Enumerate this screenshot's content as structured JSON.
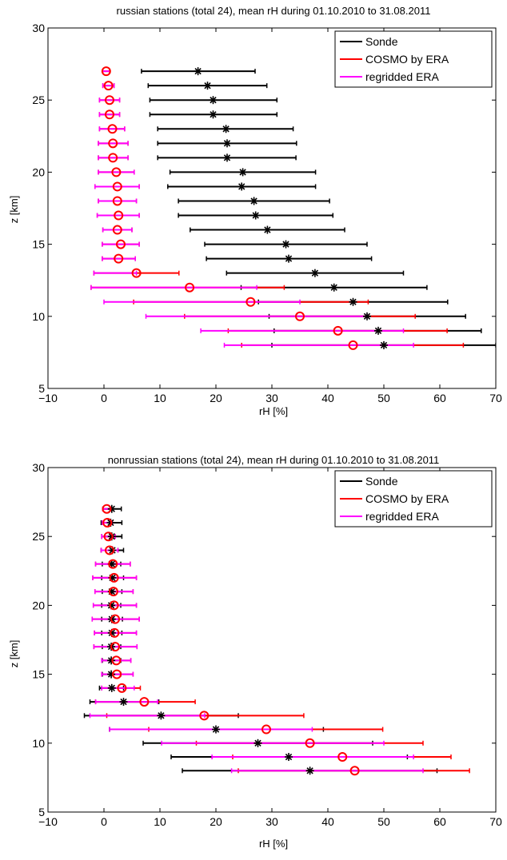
{
  "chart_data": [
    {
      "type": "errorbar",
      "title": "russian stations (total 24), mean rH during 01.10.2010 to 31.08.2011",
      "xlabel": "rH [%]",
      "ylabel": "z [km]",
      "xlim": [
        -10,
        70
      ],
      "ylim": [
        5,
        30
      ],
      "xticks": [
        -10,
        0,
        10,
        20,
        30,
        40,
        50,
        60,
        70
      ],
      "yticks": [
        5,
        10,
        15,
        20,
        25,
        30
      ],
      "legend_position": "top-right",
      "series": [
        {
          "name": "Sonde",
          "color": "#000000",
          "marker": "asterisk",
          "points": [
            {
              "z": 27.0,
              "x": 16.8,
              "lo": 6.7,
              "hi": 27.0
            },
            {
              "z": 26.0,
              "x": 18.5,
              "lo": 7.9,
              "hi": 29.1
            },
            {
              "z": 25.0,
              "x": 19.5,
              "lo": 8.2,
              "hi": 30.9
            },
            {
              "z": 24.0,
              "x": 19.5,
              "lo": 8.2,
              "hi": 30.9
            },
            {
              "z": 23.0,
              "x": 21.8,
              "lo": 9.6,
              "hi": 33.8
            },
            {
              "z": 22.0,
              "x": 22.0,
              "lo": 9.6,
              "hi": 34.4
            },
            {
              "z": 21.0,
              "x": 22.0,
              "lo": 9.6,
              "hi": 34.3
            },
            {
              "z": 20.0,
              "x": 24.8,
              "lo": 11.8,
              "hi": 37.8
            },
            {
              "z": 19.0,
              "x": 24.6,
              "lo": 11.4,
              "hi": 37.8
            },
            {
              "z": 18.0,
              "x": 26.8,
              "lo": 13.3,
              "hi": 40.3
            },
            {
              "z": 17.0,
              "x": 27.1,
              "lo": 13.3,
              "hi": 40.9
            },
            {
              "z": 16.0,
              "x": 29.2,
              "lo": 15.4,
              "hi": 43.0
            },
            {
              "z": 15.0,
              "x": 32.5,
              "lo": 18.0,
              "hi": 47.0
            },
            {
              "z": 14.0,
              "x": 33.0,
              "lo": 18.3,
              "hi": 47.8
            },
            {
              "z": 13.0,
              "x": 37.7,
              "lo": 21.9,
              "hi": 53.5
            },
            {
              "z": 12.0,
              "x": 41.1,
              "lo": 24.5,
              "hi": 57.7
            },
            {
              "z": 11.0,
              "x": 44.5,
              "lo": 27.6,
              "hi": 61.4
            },
            {
              "z": 10.0,
              "x": 47.0,
              "lo": 29.5,
              "hi": 64.6
            },
            {
              "z": 9.0,
              "x": 49.0,
              "lo": 30.4,
              "hi": 67.4
            },
            {
              "z": 8.0,
              "x": 50.0,
              "lo": 30.0,
              "hi": 70.0
            }
          ]
        },
        {
          "name": "COSMO by ERA",
          "color": "#ff0000",
          "marker": "circle",
          "points": [
            {
              "z": 27.0,
              "x": 0.4,
              "lo": -0.2,
              "hi": 1.0
            },
            {
              "z": 26.0,
              "x": 0.8,
              "lo": -0.2,
              "hi": 1.8
            },
            {
              "z": 25.0,
              "x": 1.0,
              "lo": -0.8,
              "hi": 2.8
            },
            {
              "z": 24.0,
              "x": 1.0,
              "lo": -0.8,
              "hi": 2.8
            },
            {
              "z": 23.0,
              "x": 1.5,
              "lo": -0.8,
              "hi": 3.7
            },
            {
              "z": 22.0,
              "x": 1.6,
              "lo": -1.0,
              "hi": 4.3
            },
            {
              "z": 21.0,
              "x": 1.6,
              "lo": -1.0,
              "hi": 4.3
            },
            {
              "z": 20.0,
              "x": 2.2,
              "lo": -1.0,
              "hi": 5.4
            },
            {
              "z": 19.0,
              "x": 2.4,
              "lo": -1.6,
              "hi": 6.3
            },
            {
              "z": 18.0,
              "x": 2.4,
              "lo": -1.0,
              "hi": 5.8
            },
            {
              "z": 17.0,
              "x": 2.6,
              "lo": -1.2,
              "hi": 6.3
            },
            {
              "z": 16.0,
              "x": 2.4,
              "lo": -0.2,
              "hi": 5.0
            },
            {
              "z": 15.0,
              "x": 3.0,
              "lo": -0.3,
              "hi": 6.3
            },
            {
              "z": 14.0,
              "x": 2.6,
              "lo": -0.3,
              "hi": 5.6
            },
            {
              "z": 13.0,
              "x": 5.8,
              "lo": -1.8,
              "hi": 13.4
            },
            {
              "z": 12.0,
              "x": 15.3,
              "lo": -2.3,
              "hi": 32.2
            },
            {
              "z": 11.0,
              "x": 26.2,
              "lo": 5.3,
              "hi": 47.2
            },
            {
              "z": 10.0,
              "x": 35.0,
              "lo": 14.4,
              "hi": 55.6
            },
            {
              "z": 9.0,
              "x": 41.8,
              "lo": 22.2,
              "hi": 61.3
            },
            {
              "z": 8.0,
              "x": 44.5,
              "lo": 24.6,
              "hi": 64.2
            }
          ]
        },
        {
          "name": "regridded ERA",
          "color": "#ff00ff",
          "marker": "none",
          "points": [
            {
              "z": 27.0,
              "x": 0.4,
              "lo": -0.2,
              "hi": 1.0
            },
            {
              "z": 26.0,
              "x": 0.8,
              "lo": -0.2,
              "hi": 1.8
            },
            {
              "z": 25.0,
              "x": 1.0,
              "lo": -0.8,
              "hi": 2.8
            },
            {
              "z": 24.0,
              "x": 1.0,
              "lo": -0.8,
              "hi": 2.8
            },
            {
              "z": 23.0,
              "x": 1.5,
              "lo": -0.8,
              "hi": 3.7
            },
            {
              "z": 22.0,
              "x": 1.6,
              "lo": -1.0,
              "hi": 4.3
            },
            {
              "z": 21.0,
              "x": 1.6,
              "lo": -1.0,
              "hi": 4.3
            },
            {
              "z": 20.0,
              "x": 2.2,
              "lo": -1.0,
              "hi": 5.4
            },
            {
              "z": 19.0,
              "x": 2.4,
              "lo": -1.6,
              "hi": 6.3
            },
            {
              "z": 18.0,
              "x": 2.4,
              "lo": -1.0,
              "hi": 5.8
            },
            {
              "z": 17.0,
              "x": 2.6,
              "lo": -1.2,
              "hi": 6.3
            },
            {
              "z": 16.0,
              "x": 2.4,
              "lo": -0.2,
              "hi": 5.0
            },
            {
              "z": 15.0,
              "x": 3.0,
              "lo": -0.3,
              "hi": 6.3
            },
            {
              "z": 14.0,
              "x": 2.6,
              "lo": -0.3,
              "hi": 5.6
            },
            {
              "z": 13.0,
              "x": 5.8,
              "lo": -1.8,
              "hi": 5.8
            },
            {
              "z": 12.0,
              "x": 15.3,
              "lo": -2.3,
              "hi": 27.3
            },
            {
              "z": 11.0,
              "x": 26.2,
              "lo": 0.0,
              "hi": 35.0
            },
            {
              "z": 10.0,
              "x": 35.0,
              "lo": 7.5,
              "hi": 47.0
            },
            {
              "z": 9.0,
              "x": 41.8,
              "lo": 17.3,
              "hi": 53.5
            },
            {
              "z": 8.0,
              "x": 44.5,
              "lo": 21.5,
              "hi": 55.3
            }
          ]
        }
      ]
    },
    {
      "type": "errorbar",
      "title": "nonrussian stations (total 24), mean rH during 01.10.2010 to 31.08.2011",
      "xlabel": "rH [%]",
      "ylabel": "z [km]",
      "xlim": [
        -10,
        70
      ],
      "ylim": [
        5,
        30
      ],
      "xticks": [
        -10,
        0,
        10,
        20,
        30,
        40,
        50,
        60,
        70
      ],
      "yticks": [
        5,
        10,
        15,
        20,
        25,
        30
      ],
      "legend_position": "top-right",
      "series": [
        {
          "name": "Sonde",
          "color": "#000000",
          "marker": "asterisk",
          "points": [
            {
              "z": 27.0,
              "x": 1.4,
              "lo": -0.2,
              "hi": 3.1
            },
            {
              "z": 26.0,
              "x": 1.2,
              "lo": -0.5,
              "hi": 3.2
            },
            {
              "z": 25.0,
              "x": 1.4,
              "lo": -0.4,
              "hi": 3.2
            },
            {
              "z": 24.0,
              "x": 1.5,
              "lo": -0.5,
              "hi": 3.5
            },
            {
              "z": 23.0,
              "x": 1.4,
              "lo": -0.3,
              "hi": 3.0
            },
            {
              "z": 22.0,
              "x": 1.5,
              "lo": -0.4,
              "hi": 3.5
            },
            {
              "z": 21.0,
              "x": 1.4,
              "lo": -0.3,
              "hi": 3.2
            },
            {
              "z": 20.0,
              "x": 1.3,
              "lo": -0.4,
              "hi": 3.0
            },
            {
              "z": 19.0,
              "x": 1.4,
              "lo": -0.4,
              "hi": 3.3
            },
            {
              "z": 18.0,
              "x": 1.4,
              "lo": -0.4,
              "hi": 3.2
            },
            {
              "z": 17.0,
              "x": 1.3,
              "lo": -0.3,
              "hi": 3.0
            },
            {
              "z": 16.0,
              "x": 1.3,
              "lo": -0.3,
              "hi": 3.0
            },
            {
              "z": 15.0,
              "x": 1.3,
              "lo": -0.3,
              "hi": 3.0
            },
            {
              "z": 14.0,
              "x": 1.4,
              "lo": -0.8,
              "hi": 3.5
            },
            {
              "z": 13.0,
              "x": 3.5,
              "lo": -2.5,
              "hi": 9.8
            },
            {
              "z": 12.0,
              "x": 10.2,
              "lo": -3.5,
              "hi": 24.0
            },
            {
              "z": 11.0,
              "x": 20.0,
              "lo": 1.0,
              "hi": 39.2
            },
            {
              "z": 10.0,
              "x": 27.5,
              "lo": 7.0,
              "hi": 48.0
            },
            {
              "z": 9.0,
              "x": 33.0,
              "lo": 12.0,
              "hi": 54.2
            },
            {
              "z": 8.0,
              "x": 36.8,
              "lo": 14.0,
              "hi": 59.5
            }
          ]
        },
        {
          "name": "COSMO by ERA",
          "color": "#ff0000",
          "marker": "circle",
          "points": [
            {
              "z": 27.0,
              "x": 0.5,
              "lo": -0.2,
              "hi": 1.2
            },
            {
              "z": 26.0,
              "x": 0.6,
              "lo": -0.3,
              "hi": 1.5
            },
            {
              "z": 25.0,
              "x": 0.8,
              "lo": -0.4,
              "hi": 2.0
            },
            {
              "z": 24.0,
              "x": 1.0,
              "lo": -0.5,
              "hi": 2.5
            },
            {
              "z": 23.0,
              "x": 1.6,
              "lo": -1.5,
              "hi": 4.7
            },
            {
              "z": 22.0,
              "x": 1.8,
              "lo": -2.0,
              "hi": 5.8
            },
            {
              "z": 21.0,
              "x": 1.7,
              "lo": -1.6,
              "hi": 5.2
            },
            {
              "z": 20.0,
              "x": 1.8,
              "lo": -1.9,
              "hi": 5.8
            },
            {
              "z": 19.0,
              "x": 2.0,
              "lo": -2.1,
              "hi": 6.3
            },
            {
              "z": 18.0,
              "x": 1.9,
              "lo": -1.7,
              "hi": 5.8
            },
            {
              "z": 17.0,
              "x": 2.0,
              "lo": -1.8,
              "hi": 5.9
            },
            {
              "z": 16.0,
              "x": 2.2,
              "lo": -0.4,
              "hi": 4.8
            },
            {
              "z": 15.0,
              "x": 2.3,
              "lo": -0.4,
              "hi": 5.2
            },
            {
              "z": 14.0,
              "x": 3.2,
              "lo": -0.4,
              "hi": 6.5
            },
            {
              "z": 13.0,
              "x": 7.2,
              "lo": -1.5,
              "hi": 16.3
            },
            {
              "z": 12.0,
              "x": 17.9,
              "lo": 0.5,
              "hi": 35.7
            },
            {
              "z": 11.0,
              "x": 29.0,
              "lo": 8.0,
              "hi": 49.8
            },
            {
              "z": 10.0,
              "x": 36.8,
              "lo": 16.5,
              "hi": 57.0
            },
            {
              "z": 9.0,
              "x": 42.6,
              "lo": 23.0,
              "hi": 62.0
            },
            {
              "z": 8.0,
              "x": 44.8,
              "lo": 24.0,
              "hi": 65.3
            }
          ]
        },
        {
          "name": "regridded ERA",
          "color": "#ff00ff",
          "marker": "none",
          "points": [
            {
              "z": 27.0,
              "x": 0.5,
              "lo": -0.2,
              "hi": 1.2
            },
            {
              "z": 26.0,
              "x": 0.6,
              "lo": -0.3,
              "hi": 1.5
            },
            {
              "z": 25.0,
              "x": 0.8,
              "lo": -0.4,
              "hi": 2.0
            },
            {
              "z": 24.0,
              "x": 1.0,
              "lo": -0.5,
              "hi": 2.5
            },
            {
              "z": 23.0,
              "x": 1.6,
              "lo": -1.5,
              "hi": 4.7
            },
            {
              "z": 22.0,
              "x": 1.8,
              "lo": -2.0,
              "hi": 5.8
            },
            {
              "z": 21.0,
              "x": 1.7,
              "lo": -1.6,
              "hi": 5.2
            },
            {
              "z": 20.0,
              "x": 1.8,
              "lo": -1.9,
              "hi": 5.8
            },
            {
              "z": 19.0,
              "x": 2.0,
              "lo": -2.1,
              "hi": 6.3
            },
            {
              "z": 18.0,
              "x": 1.9,
              "lo": -1.7,
              "hi": 5.8
            },
            {
              "z": 17.0,
              "x": 2.0,
              "lo": -1.8,
              "hi": 5.9
            },
            {
              "z": 16.0,
              "x": 2.2,
              "lo": -0.4,
              "hi": 4.8
            },
            {
              "z": 15.0,
              "x": 2.3,
              "lo": -0.4,
              "hi": 5.2
            },
            {
              "z": 14.0,
              "x": 3.2,
              "lo": -0.4,
              "hi": 5.4
            },
            {
              "z": 13.0,
              "x": 7.2,
              "lo": -1.5,
              "hi": 9.6
            },
            {
              "z": 12.0,
              "x": 17.9,
              "lo": -2.5,
              "hi": 18.0
            },
            {
              "z": 11.0,
              "x": 29.0,
              "lo": 1.0,
              "hi": 37.2
            },
            {
              "z": 10.0,
              "x": 36.8,
              "lo": 10.3,
              "hi": 50.0
            },
            {
              "z": 9.0,
              "x": 42.6,
              "lo": 19.3,
              "hi": 55.3
            },
            {
              "z": 8.0,
              "x": 44.8,
              "lo": 22.8,
              "hi": 57.0
            }
          ]
        }
      ]
    }
  ]
}
